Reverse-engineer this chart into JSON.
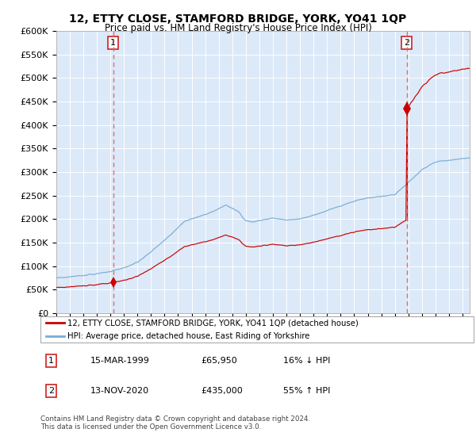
{
  "title": "12, ETTY CLOSE, STAMFORD BRIDGE, YORK, YO41 1QP",
  "subtitle": "Price paid vs. HM Land Registry's House Price Index (HPI)",
  "legend_line1": "12, ETTY CLOSE, STAMFORD BRIDGE, YORK, YO41 1QP (detached house)",
  "legend_line2": "HPI: Average price, detached house, East Riding of Yorkshire",
  "footer": "Contains HM Land Registry data © Crown copyright and database right 2024.\nThis data is licensed under the Open Government Licence v3.0.",
  "table": [
    {
      "num": "1",
      "date": "15-MAR-1999",
      "price": "£65,950",
      "pct": "16% ↓ HPI"
    },
    {
      "num": "2",
      "date": "13-NOV-2020",
      "price": "£435,000",
      "pct": "55% ↑ HPI"
    }
  ],
  "sale1_year": 1999.21,
  "sale1_price": 65950,
  "sale2_year": 2020.87,
  "sale2_price": 435000,
  "ylim": [
    0,
    600000
  ],
  "yticks": [
    0,
    50000,
    100000,
    150000,
    200000,
    250000,
    300000,
    350000,
    400000,
    450000,
    500000,
    550000,
    600000
  ],
  "xlim_start": 1995.0,
  "xlim_end": 2025.5,
  "background_color": "#dce9f8",
  "grid_color": "#ffffff",
  "red_line_color": "#cc0000",
  "blue_line_color": "#7aadd4",
  "dashed_line_color": "#e06060"
}
